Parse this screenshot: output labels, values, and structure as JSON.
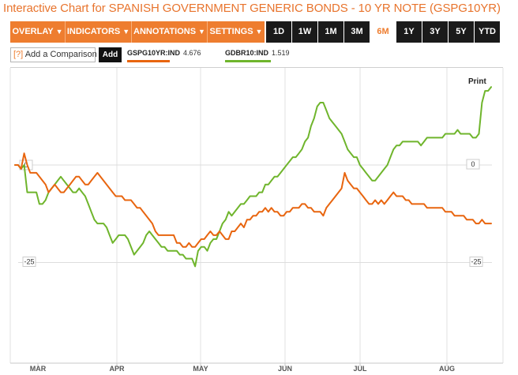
{
  "title": "Interactive Chart for SPANISH GOVERNMENT GENERIC BONDS - 10 YR NOTE (GSPG10YR)",
  "toolbar": {
    "menus": [
      "OVERLAY",
      "INDICATORS",
      "ANNOTATIONS",
      "SETTINGS"
    ],
    "ranges": [
      "1D",
      "1W",
      "1M",
      "3M",
      "6M",
      "1Y",
      "3Y",
      "5Y",
      "YTD"
    ],
    "active_range": "6M"
  },
  "compare": {
    "help": "[?]",
    "label": "Add a Comparison",
    "add_label": "Add"
  },
  "print_label": "Print",
  "colors": {
    "accent": "#ee7d2f",
    "orange_series": "#e8650f",
    "green_series": "#6fb52c",
    "dark": "#1a1a1a"
  },
  "chart_data": {
    "type": "line",
    "x_labels": [
      "MAR",
      "APR",
      "MAY",
      "JUN",
      "JUL",
      "AUG"
    ],
    "ylim": [
      -35,
      22
    ],
    "yticks_left": [
      "0",
      "-25"
    ],
    "yticks_right": [
      "0",
      "-25"
    ],
    "grid": true,
    "series": [
      {
        "name": "GSPG10YR:IND",
        "last_value": "4.676",
        "color": "#e8650f",
        "values": [
          0,
          0,
          -1,
          3,
          0,
          -2,
          -2,
          -2,
          -3,
          -4,
          -5,
          -7,
          -6,
          -5,
          -6,
          -7,
          -7,
          -6,
          -5,
          -4,
          -3,
          -3,
          -4,
          -5,
          -5,
          -4,
          -3,
          -2,
          -3,
          -4,
          -5,
          -6,
          -7,
          -8,
          -8,
          -8,
          -9,
          -9,
          -9,
          -10,
          -11,
          -11,
          -12,
          -13,
          -14,
          -15,
          -17,
          -18,
          -18,
          -18,
          -18,
          -18,
          -18,
          -20,
          -20,
          -21,
          -21,
          -20,
          -21,
          -21,
          -20,
          -19,
          -19,
          -18,
          -17,
          -18,
          -18,
          -17,
          -18,
          -19,
          -19,
          -17,
          -17,
          -16,
          -15,
          -16,
          -14,
          -14,
          -13,
          -13,
          -12,
          -12,
          -11,
          -12,
          -11,
          -12,
          -12,
          -13,
          -13,
          -12,
          -12,
          -11,
          -11,
          -11,
          -10,
          -10,
          -11,
          -11,
          -12,
          -12,
          -12,
          -13,
          -11,
          -10,
          -9,
          -8,
          -7,
          -6,
          -2,
          -4,
          -5,
          -6,
          -6,
          -7,
          -8,
          -9,
          -10,
          -10,
          -9,
          -10,
          -9,
          -10,
          -9,
          -8,
          -7,
          -8,
          -8,
          -8,
          -9,
          -9,
          -10,
          -10,
          -10,
          -10,
          -10,
          -11,
          -11,
          -11,
          -11,
          -11,
          -11,
          -12,
          -12,
          -12,
          -13,
          -13,
          -13,
          -13,
          -14,
          -14,
          -14,
          -15,
          -15,
          -14,
          -15,
          -15,
          -15
        ]
      },
      {
        "name": "GDBR10:IND",
        "last_value": "1.519",
        "color": "#6fb52c",
        "values": [
          0,
          0,
          -1,
          0,
          -7,
          -7,
          -7,
          -7,
          -10,
          -10,
          -9,
          -7,
          -6,
          -5,
          -4,
          -3,
          -4,
          -5,
          -6,
          -7,
          -7,
          -6,
          -7,
          -8,
          -10,
          -12,
          -14,
          -15,
          -15,
          -15,
          -16,
          -18,
          -20,
          -19,
          -18,
          -18,
          -18,
          -19,
          -21,
          -23,
          -22,
          -21,
          -20,
          -18,
          -17,
          -18,
          -19,
          -20,
          -21,
          -21,
          -22,
          -22,
          -22,
          -22,
          -23,
          -23,
          -24,
          -24,
          -24,
          -26,
          -22,
          -21,
          -21,
          -22,
          -20,
          -19,
          -19,
          -17,
          -15,
          -14,
          -12,
          -13,
          -12,
          -11,
          -10,
          -10,
          -9,
          -8,
          -8,
          -8,
          -7,
          -7,
          -5,
          -5,
          -4,
          -3,
          -3,
          -2,
          -1,
          0,
          1,
          2,
          2,
          3,
          4,
          6,
          7,
          10,
          12,
          15,
          16,
          16,
          14,
          12,
          11,
          10,
          9,
          8,
          6,
          4,
          3,
          2,
          2,
          0,
          -1,
          -2,
          -3,
          -4,
          -4,
          -3,
          -2,
          -1,
          0,
          2,
          4,
          5,
          5,
          6,
          6,
          6,
          6,
          6,
          6,
          5,
          6,
          7,
          7,
          7,
          7,
          7,
          7,
          8,
          8,
          8,
          8,
          9,
          8,
          8,
          8,
          8,
          7,
          7,
          8,
          16,
          19,
          19,
          20
        ]
      }
    ]
  }
}
